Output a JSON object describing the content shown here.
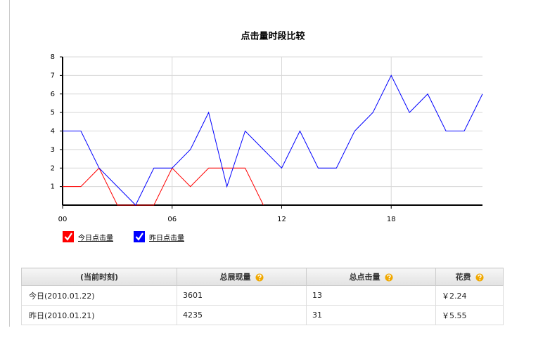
{
  "chart_data": {
    "type": "line",
    "title": "点击量时段比较",
    "x": [
      0,
      1,
      2,
      3,
      4,
      5,
      6,
      7,
      8,
      9,
      10,
      11,
      12,
      13,
      14,
      15,
      16,
      17,
      18,
      19,
      20,
      21,
      22,
      23
    ],
    "xlim": [
      0,
      23
    ],
    "xticks": [
      {
        "value": 0,
        "label": "00"
      },
      {
        "value": 6,
        "label": "06"
      },
      12,
      18
    ],
    "ylim": [
      0,
      8
    ],
    "yticks": [
      1,
      2,
      3,
      4,
      5,
      6,
      7,
      8
    ],
    "grid": true,
    "series": [
      {
        "name": "今日点击量",
        "color": "#ff0000",
        "values": [
          1,
          1,
          2,
          0,
          0,
          0,
          2,
          1,
          2,
          2,
          2,
          0,
          null,
          null,
          null,
          null,
          null,
          null,
          null,
          null,
          null,
          null,
          null,
          null
        ]
      },
      {
        "name": "昨日点击量",
        "color": "#0000ff",
        "values": [
          4,
          4,
          2,
          1,
          0,
          2,
          2,
          3,
          5,
          1,
          4,
          3,
          2,
          4,
          2,
          2,
          4,
          5,
          7,
          5,
          6,
          4,
          4,
          6
        ]
      }
    ]
  },
  "table": {
    "header": [
      "(当前时刻)",
      "总展现量",
      "总点击量",
      "花费"
    ],
    "rows": [
      [
        "今日(2010.01.22)",
        "3601",
        "13",
        "￥2.24"
      ],
      [
        "昨日(2010.01.21)",
        "4235",
        "31",
        "￥5.55"
      ]
    ]
  }
}
